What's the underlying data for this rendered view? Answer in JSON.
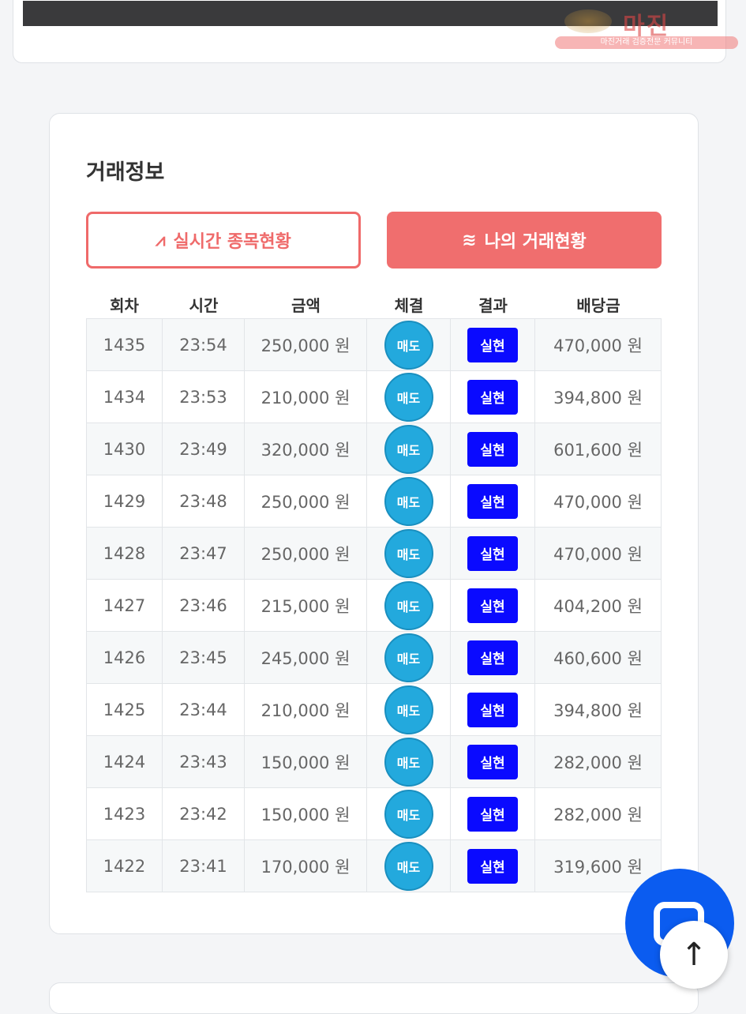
{
  "watermark": {
    "logo": "마진",
    "tagline": "마진거래 검증전문 커뮤니티"
  },
  "section": {
    "title": "거래정보"
  },
  "buttons": {
    "realtime": {
      "icon": "pulse-icon",
      "label": "실시간 종목현황"
    },
    "mine": {
      "icon": "waves-icon",
      "label": "나의 거래현황"
    }
  },
  "table": {
    "headers": [
      "회차",
      "시간",
      "금액",
      "체결",
      "결과",
      "배당금"
    ],
    "rows": [
      {
        "round": "1435",
        "time": "23:54",
        "amount": "250,000 원",
        "trade": "매도",
        "result": "실현",
        "payout": "470,000 원"
      },
      {
        "round": "1434",
        "time": "23:53",
        "amount": "210,000 원",
        "trade": "매도",
        "result": "실현",
        "payout": "394,800 원"
      },
      {
        "round": "1430",
        "time": "23:49",
        "amount": "320,000 원",
        "trade": "매도",
        "result": "실현",
        "payout": "601,600 원"
      },
      {
        "round": "1429",
        "time": "23:48",
        "amount": "250,000 원",
        "trade": "매도",
        "result": "실현",
        "payout": "470,000 원"
      },
      {
        "round": "1428",
        "time": "23:47",
        "amount": "250,000 원",
        "trade": "매도",
        "result": "실현",
        "payout": "470,000 원"
      },
      {
        "round": "1427",
        "time": "23:46",
        "amount": "215,000 원",
        "trade": "매도",
        "result": "실현",
        "payout": "404,200 원"
      },
      {
        "round": "1426",
        "time": "23:45",
        "amount": "245,000 원",
        "trade": "매도",
        "result": "실현",
        "payout": "460,600 원"
      },
      {
        "round": "1425",
        "time": "23:44",
        "amount": "210,000 원",
        "trade": "매도",
        "result": "실현",
        "payout": "394,800 원"
      },
      {
        "round": "1424",
        "time": "23:43",
        "amount": "150,000 원",
        "trade": "매도",
        "result": "실현",
        "payout": "282,000 원"
      },
      {
        "round": "1423",
        "time": "23:42",
        "amount": "150,000 원",
        "trade": "매도",
        "result": "실현",
        "payout": "282,000 원"
      },
      {
        "round": "1422",
        "time": "23:41",
        "amount": "170,000 원",
        "trade": "매도",
        "result": "실현",
        "payout": "319,600 원"
      }
    ]
  },
  "floating": {
    "chat_icon": "chat-icon",
    "top_icon": "arrow-up-icon",
    "top_glyph": "↑"
  },
  "colors": {
    "accent": "#f06e6e",
    "sell": "#23a9dd",
    "result": "#0a0aff",
    "chat": "#0b5cf0"
  }
}
